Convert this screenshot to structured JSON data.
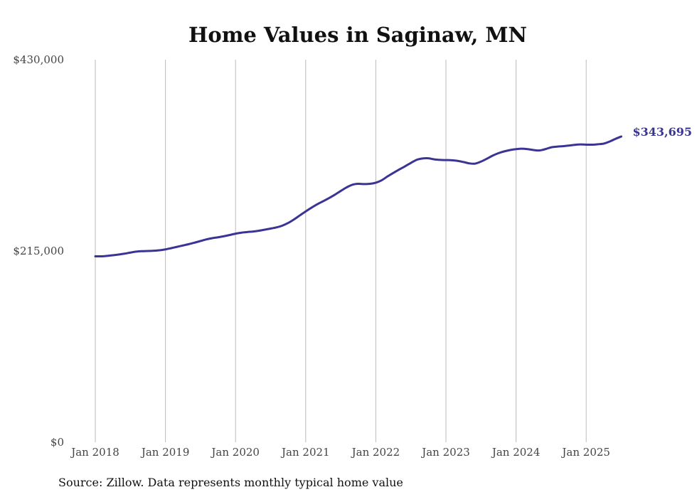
{
  "chart_data": {
    "type": "line",
    "title": "Home Values in Saginaw, MN",
    "source": "Source: Zillow. Data represents monthly typical home value",
    "ylim": [
      0,
      430000
    ],
    "y_ticks": [
      {
        "value": 0,
        "label": "$0"
      },
      {
        "value": 215000,
        "label": "$215,000"
      },
      {
        "value": 430000,
        "label": "$430,000"
      }
    ],
    "xlim": [
      "2018-01",
      "2025-07"
    ],
    "x_ticks": [
      {
        "date": "2018-01",
        "label": "Jan 2018"
      },
      {
        "date": "2019-01",
        "label": "Jan 2019"
      },
      {
        "date": "2020-01",
        "label": "Jan 2020"
      },
      {
        "date": "2021-01",
        "label": "Jan 2021"
      },
      {
        "date": "2022-01",
        "label": "Jan 2022"
      },
      {
        "date": "2023-01",
        "label": "Jan 2023"
      },
      {
        "date": "2024-01",
        "label": "Jan 2024"
      },
      {
        "date": "2025-01",
        "label": "Jan 2025"
      }
    ],
    "grid": "vertical",
    "line_color": "#3a3494",
    "end_label": "$343,695",
    "x": [
      "2018-01",
      "2018-02",
      "2018-03",
      "2018-04",
      "2018-05",
      "2018-06",
      "2018-07",
      "2018-08",
      "2018-09",
      "2018-10",
      "2018-11",
      "2018-12",
      "2019-01",
      "2019-02",
      "2019-03",
      "2019-04",
      "2019-05",
      "2019-06",
      "2019-07",
      "2019-08",
      "2019-09",
      "2019-10",
      "2019-11",
      "2019-12",
      "2020-01",
      "2020-02",
      "2020-03",
      "2020-04",
      "2020-05",
      "2020-06",
      "2020-07",
      "2020-08",
      "2020-09",
      "2020-10",
      "2020-11",
      "2020-12",
      "2021-01",
      "2021-02",
      "2021-03",
      "2021-04",
      "2021-05",
      "2021-06",
      "2021-07",
      "2021-08",
      "2021-09",
      "2021-10",
      "2021-11",
      "2021-12",
      "2022-01",
      "2022-02",
      "2022-03",
      "2022-04",
      "2022-05",
      "2022-06",
      "2022-07",
      "2022-08",
      "2022-09",
      "2022-10",
      "2022-11",
      "2022-12",
      "2023-01",
      "2023-02",
      "2023-03",
      "2023-04",
      "2023-05",
      "2023-06",
      "2023-07",
      "2023-08",
      "2023-09",
      "2023-10",
      "2023-11",
      "2023-12",
      "2024-01",
      "2024-02",
      "2024-03",
      "2024-04",
      "2024-05",
      "2024-06",
      "2024-07",
      "2024-08",
      "2024-09",
      "2024-10",
      "2024-11",
      "2024-12",
      "2025-01",
      "2025-02",
      "2025-03",
      "2025-04",
      "2025-05",
      "2025-06",
      "2025-07"
    ],
    "series": [
      {
        "values": [
          209000,
          209000,
          209500,
          210200,
          211000,
          212000,
          213200,
          214300,
          214800,
          215000,
          215300,
          215800,
          216800,
          218200,
          219700,
          221200,
          222700,
          224400,
          226200,
          228000,
          229400,
          230400,
          231600,
          233000,
          234500,
          235600,
          236300,
          236900,
          237800,
          239000,
          240200,
          241500,
          243500,
          246500,
          250500,
          255000,
          259500,
          263700,
          267600,
          271000,
          274500,
          278300,
          282500,
          286500,
          289500,
          290500,
          290200,
          290500,
          291800,
          294500,
          298800,
          302800,
          306600,
          310200,
          314000,
          317500,
          319000,
          319200,
          318000,
          317400,
          317200,
          317000,
          316300,
          315000,
          313500,
          313200,
          315500,
          318700,
          322200,
          325000,
          327000,
          328500,
          329500,
          330000,
          329500,
          328500,
          328000,
          329500,
          331500,
          332300,
          332800,
          333500,
          334300,
          334800,
          334500,
          334500,
          335000,
          335700,
          338000,
          341000,
          343695
        ]
      }
    ]
  }
}
